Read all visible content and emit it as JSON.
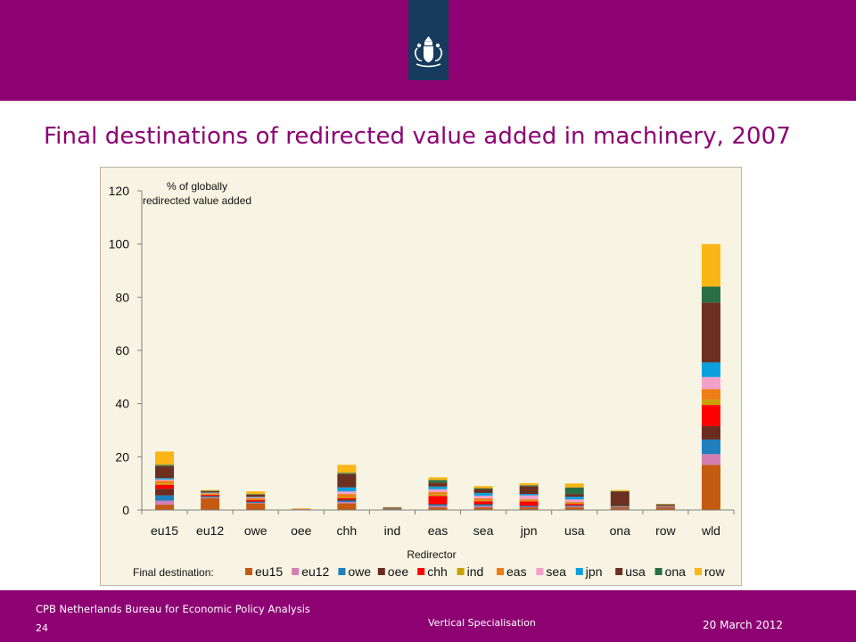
{
  "slide_title": "Final destinations of redirected value added in machinery, 2007",
  "footer": {
    "organization": "CPB Netherlands Bureau for Economic Policy Analysis",
    "page_number": "24",
    "center_text": "Vertical Specialisation",
    "date": "20 March 2012"
  },
  "colors": {
    "banner": "#8d0173",
    "ribbon": "#173b5c",
    "chart_background": "#f7f4e3"
  },
  "logo": {
    "icon": "coat-of-arms-icon"
  },
  "chart_data": {
    "type": "bar",
    "stacked": true,
    "title": "",
    "ylabel": "% of globally redirected value added",
    "xlabel": "Redirector",
    "ylim": [
      0,
      120
    ],
    "yticks": [
      0,
      20,
      40,
      60,
      80,
      100,
      120
    ],
    "legend_title": "Final destination:",
    "legend_position": "bottom",
    "grid": false,
    "categories": [
      "eu15",
      "eu12",
      "owe",
      "oee",
      "chh",
      "ind",
      "eas",
      "sea",
      "jpn",
      "usa",
      "ona",
      "row",
      "wld"
    ],
    "series": [
      {
        "name": "eu15",
        "color": "#c55a11",
        "values": [
          2.0,
          4.5,
          2.5,
          0.3,
          2.5,
          0.3,
          1.0,
          1.0,
          1.0,
          1.0,
          0.7,
          0.8,
          17.0
        ]
      },
      {
        "name": "eu12",
        "color": "#d47fb3",
        "values": [
          1.5,
          0.3,
          0.2,
          0.1,
          0.5,
          0.0,
          0.5,
          0.5,
          0.2,
          0.3,
          0.1,
          0.1,
          4.0
        ]
      },
      {
        "name": "owe",
        "color": "#1f7fbf",
        "values": [
          2.0,
          0.3,
          0.3,
          0.0,
          0.5,
          0.2,
          0.5,
          0.5,
          0.3,
          0.3,
          0.1,
          0.1,
          5.5
        ]
      },
      {
        "name": "oee",
        "color": "#6b2c1f",
        "values": [
          2.5,
          0.3,
          0.3,
          0.0,
          0.5,
          0.0,
          0.3,
          0.3,
          0.2,
          0.2,
          0.1,
          0.1,
          5.0
        ]
      },
      {
        "name": "chh",
        "color": "#ff0000",
        "values": [
          1.5,
          0.3,
          0.5,
          0.0,
          0.5,
          0.1,
          3.0,
          1.0,
          1.5,
          0.5,
          0.1,
          0.1,
          8.0
        ]
      },
      {
        "name": "ind",
        "color": "#c8a000",
        "values": [
          0.5,
          0.2,
          0.2,
          0.0,
          0.5,
          0.0,
          0.5,
          0.3,
          0.3,
          0.2,
          0.1,
          0.1,
          2.0
        ]
      },
      {
        "name": "eas",
        "color": "#f07e16",
        "values": [
          1.0,
          0.3,
          0.5,
          0.1,
          1.0,
          0.1,
          1.0,
          0.8,
          0.5,
          0.5,
          0.1,
          0.1,
          4.0
        ]
      },
      {
        "name": "sea",
        "color": "#f4a0c8",
        "values": [
          0.5,
          0.2,
          0.3,
          0.0,
          1.0,
          0.0,
          1.0,
          1.0,
          1.5,
          1.0,
          0.1,
          0.1,
          4.5
        ]
      },
      {
        "name": "jpn",
        "color": "#0aa0e0",
        "values": [
          0.5,
          0.2,
          0.2,
          0.0,
          1.5,
          0.1,
          1.0,
          1.0,
          0.5,
          1.0,
          0.1,
          0.1,
          5.5
        ]
      },
      {
        "name": "usa",
        "color": "#6b3020",
        "values": [
          4.5,
          0.5,
          0.8,
          0.0,
          5.0,
          0.1,
          1.5,
          1.5,
          3.0,
          1.0,
          5.5,
          0.5,
          22.5
        ]
      },
      {
        "name": "ona",
        "color": "#2a6e45",
        "values": [
          0.5,
          0.1,
          0.2,
          0.0,
          0.5,
          0.1,
          1.0,
          0.3,
          0.3,
          2.5,
          0.1,
          0.1,
          6.0
        ]
      },
      {
        "name": "row",
        "color": "#fbb515",
        "values": [
          5.0,
          0.3,
          1.0,
          0.1,
          3.0,
          0.1,
          1.0,
          0.8,
          0.8,
          1.5,
          0.4,
          0.1,
          16.0
        ]
      }
    ]
  }
}
